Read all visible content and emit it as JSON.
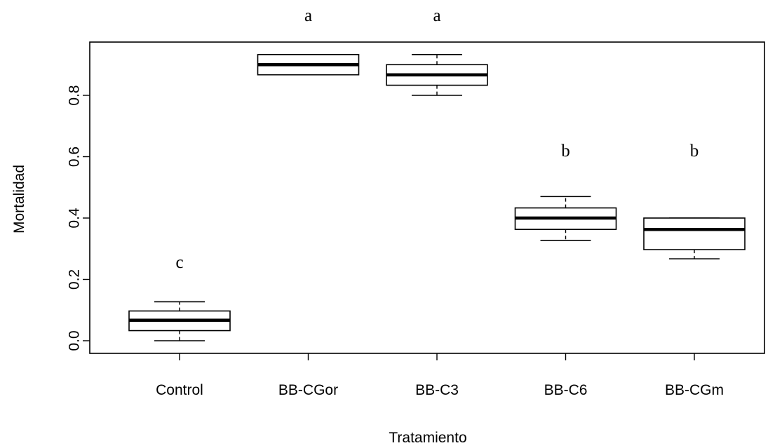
{
  "chart_data": {
    "type": "boxplot",
    "title": "",
    "xlabel": "Tratamiento",
    "ylabel": "Mortalidad",
    "ylim": [
      -0.04,
      0.98
    ],
    "yticks": [
      "0.0",
      "0.2",
      "0.4",
      "0.6",
      "0.8"
    ],
    "yticks_values": [
      0.0,
      0.2,
      0.4,
      0.6,
      0.8
    ],
    "grid": false,
    "categories": [
      "Control",
      "BB-CGor",
      "BB-C3",
      "BB-C6",
      "BB-CGm"
    ],
    "boxes": [
      {
        "category": "Control",
        "whisker_low": 0.0,
        "q1": 0.033,
        "median": 0.067,
        "q3": 0.097,
        "whisker_high": 0.127,
        "letter": "c"
      },
      {
        "category": "BB-CGor",
        "whisker_low": 0.867,
        "q1": 0.867,
        "median": 0.9,
        "q3": 0.933,
        "whisker_high": 0.933,
        "letter": "a"
      },
      {
        "category": "BB-C3",
        "whisker_low": 0.8,
        "q1": 0.833,
        "median": 0.867,
        "q3": 0.9,
        "whisker_high": 0.933,
        "letter": "a"
      },
      {
        "category": "BB-C6",
        "whisker_low": 0.327,
        "q1": 0.363,
        "median": 0.4,
        "q3": 0.433,
        "whisker_high": 0.47,
        "letter": "b"
      },
      {
        "category": "BB-CGm",
        "whisker_low": 0.267,
        "q1": 0.297,
        "median": 0.363,
        "q3": 0.4,
        "whisker_high": 0.4,
        "letter": "b"
      }
    ]
  }
}
